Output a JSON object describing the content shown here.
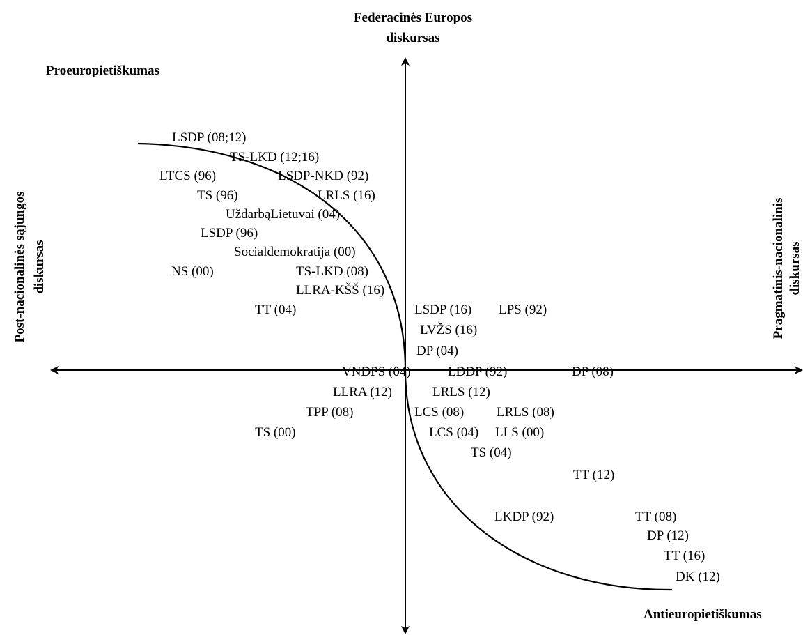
{
  "axes": {
    "top_label_line1": "Federacinės Europos",
    "top_label_line2": "diskursas",
    "left_label_line1": "Post-nacionalinės sąjungos",
    "left_label_line2": "diskursas",
    "right_label_line1": "Pragmatinis-nacionalinis",
    "right_label_line2": "diskursas"
  },
  "corners": {
    "top_left": "Proeuropietiškumas",
    "bottom_right": "Antieuropietiškumas"
  },
  "labels": [
    {
      "id": "lsdp-08-12",
      "text": "LSDP (08;12)"
    },
    {
      "id": "ts-lkd-12-16",
      "text": "TS-LKD (12;16)"
    },
    {
      "id": "ltcs-96",
      "text": "LTCS (96)"
    },
    {
      "id": "lsdp-nkd-92",
      "text": "LSDP-NKD (92)"
    },
    {
      "id": "ts-96",
      "text": "TS (96)"
    },
    {
      "id": "lrls-16",
      "text": "LRLS (16)"
    },
    {
      "id": "uzdarba-lietuvai-04",
      "text": "UždarbąLietuvai (04)"
    },
    {
      "id": "lsdp-96",
      "text": "LSDP (96)"
    },
    {
      "id": "socialdemokratija-00",
      "text": "Socialdemokratija (00)"
    },
    {
      "id": "ns-00",
      "text": "NS (00)"
    },
    {
      "id": "ts-lkd-08",
      "text": "TS-LKD (08)"
    },
    {
      "id": "llra-kss-16",
      "text": "LLRA-KŠŠ (16)"
    },
    {
      "id": "tt-04",
      "text": "TT (04)"
    },
    {
      "id": "lsdp-16",
      "text": "LSDP (16)"
    },
    {
      "id": "lps-92",
      "text": "LPS (92)"
    },
    {
      "id": "lvzs-16",
      "text": "LVŽS (16)"
    },
    {
      "id": "dp-04",
      "text": "DP (04)"
    },
    {
      "id": "vndps-04",
      "text": "VNDPS (04)"
    },
    {
      "id": "lddp-92",
      "text": "LDDP (92)"
    },
    {
      "id": "dp-08",
      "text": "DP (08)"
    },
    {
      "id": "llra-12",
      "text": "LLRA (12)"
    },
    {
      "id": "lrls-12",
      "text": "LRLS (12)"
    },
    {
      "id": "tpp-08",
      "text": "TPP (08)"
    },
    {
      "id": "lcs-08",
      "text": "LCS (08)"
    },
    {
      "id": "lrls-08",
      "text": "LRLS (08)"
    },
    {
      "id": "ts-00",
      "text": "TS (00)"
    },
    {
      "id": "lcs-04",
      "text": "LCS (04)"
    },
    {
      "id": "lls-00",
      "text": "LLS (00)"
    },
    {
      "id": "ts-04",
      "text": "TS (04)"
    },
    {
      "id": "tt-12",
      "text": "TT (12)"
    },
    {
      "id": "lkdp-92",
      "text": "LKDP (92)"
    },
    {
      "id": "tt-08",
      "text": "TT (08)"
    },
    {
      "id": "dp-12",
      "text": "DP (12)"
    },
    {
      "id": "tt-16",
      "text": "TT (16)"
    },
    {
      "id": "dk-12",
      "text": "DK (12)"
    }
  ]
}
